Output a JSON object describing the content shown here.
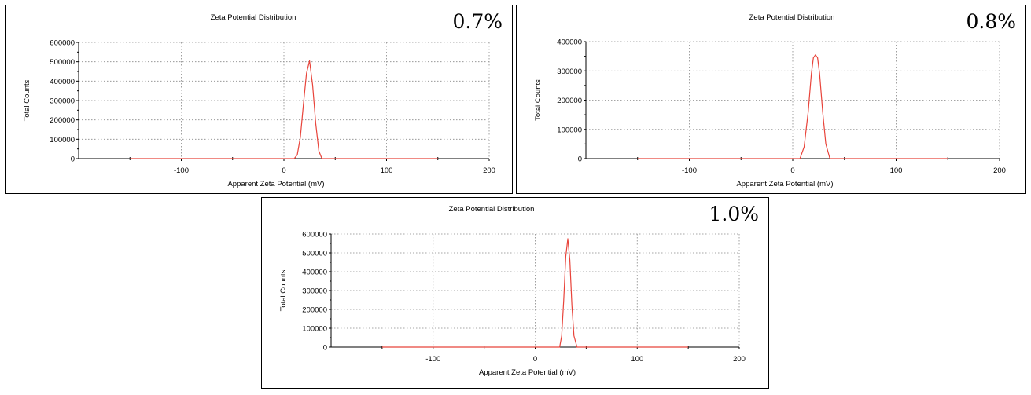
{
  "colors": {
    "curve": "#e8433a",
    "grid": "#888888",
    "axis": "#000000"
  },
  "chart_data": [
    {
      "type": "line",
      "panel_label": "0.7%",
      "title": "Zeta Potential Distribution",
      "xlabel": "Apparent Zeta Potential (mV)",
      "ylabel": "Total Counts",
      "xlim": [
        -200,
        200
      ],
      "ylim": [
        0,
        600000
      ],
      "xticks": [
        -100,
        0,
        100,
        200
      ],
      "yticks": [
        0,
        100000,
        200000,
        300000,
        400000,
        500000,
        600000
      ],
      "grid": true,
      "series": [
        {
          "x": [
            -150,
            10,
            13,
            16,
            19,
            22,
            25,
            28,
            31,
            34,
            37,
            150
          ],
          "y": [
            0,
            0,
            20000,
            110000,
            280000,
            440000,
            505000,
            380000,
            180000,
            40000,
            0,
            0
          ]
        }
      ]
    },
    {
      "type": "line",
      "panel_label": "0.8%",
      "title": "Zeta Potential Distribution",
      "xlabel": "Apparent Zeta Potential (mV)",
      "ylabel": "Total Counts",
      "xlim": [
        -200,
        200
      ],
      "ylim": [
        0,
        400000
      ],
      "xticks": [
        -100,
        0,
        100,
        200
      ],
      "yticks": [
        0,
        100000,
        200000,
        300000,
        400000
      ],
      "grid": true,
      "series": [
        {
          "x": [
            -150,
            7,
            11,
            15,
            18,
            20,
            22,
            24,
            26,
            29,
            32,
            36,
            150
          ],
          "y": [
            0,
            0,
            40000,
            160000,
            290000,
            345000,
            355000,
            345000,
            290000,
            160000,
            50000,
            0,
            0
          ]
        }
      ]
    },
    {
      "type": "line",
      "panel_label": "1.0%",
      "title": "Zeta Potential Distribution",
      "xlabel": "Apparent Zeta Potential (mV)",
      "ylabel": "Total Counts",
      "xlim": [
        -200,
        200
      ],
      "ylim": [
        0,
        600000
      ],
      "xticks": [
        -100,
        0,
        100,
        200
      ],
      "yticks": [
        0,
        100000,
        200000,
        300000,
        400000,
        500000,
        600000
      ],
      "grid": true,
      "series": [
        {
          "x": [
            -150,
            24,
            26,
            28,
            30,
            32,
            34,
            36,
            38,
            41,
            150
          ],
          "y": [
            0,
            0,
            60000,
            250000,
            480000,
            575000,
            460000,
            220000,
            60000,
            0,
            0
          ]
        }
      ]
    }
  ]
}
